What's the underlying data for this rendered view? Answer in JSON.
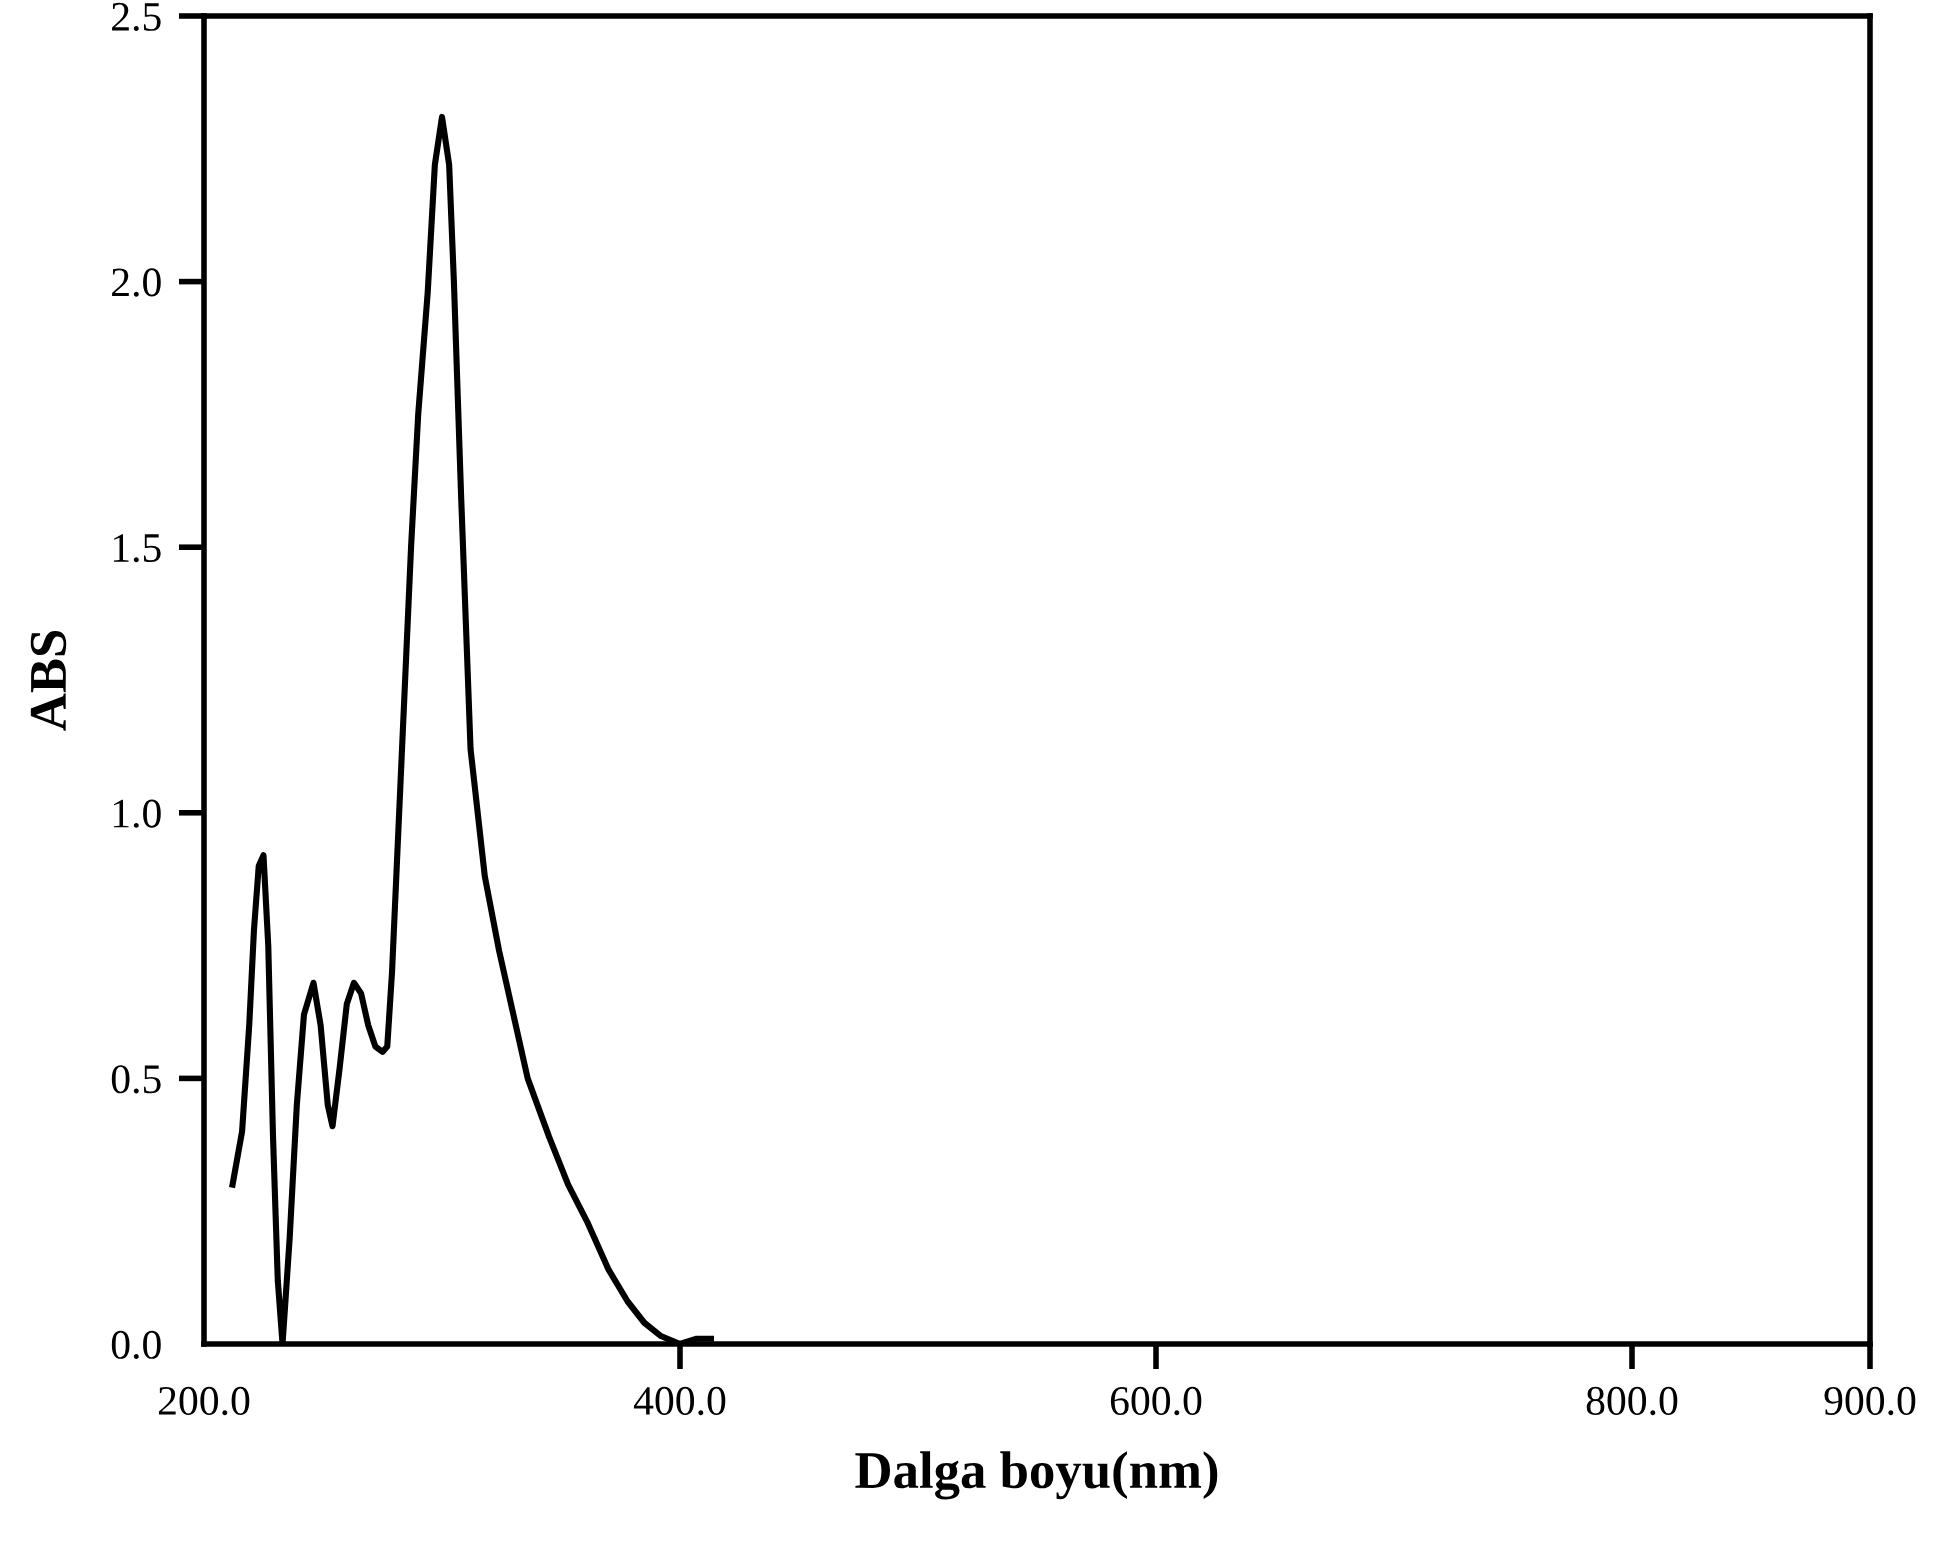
{
  "chart_data": {
    "type": "line",
    "xlabel": "Dalga boyu(nm)",
    "ylabel": "ABS",
    "x": [
      212,
      216,
      219,
      221,
      223,
      225,
      227,
      229,
      231,
      233,
      236,
      239,
      242,
      246,
      249,
      252,
      254,
      257,
      260,
      263,
      266,
      269,
      272,
      275,
      277,
      279,
      281,
      284,
      287,
      290,
      294,
      297,
      300,
      303,
      305,
      308,
      312,
      318,
      324,
      330,
      336,
      345,
      353,
      361,
      370,
      378,
      385,
      392,
      400,
      407,
      413
    ],
    "series": [
      {
        "color": "#000000",
        "values": [
          0.3,
          0.4,
          0.6,
          0.78,
          0.9,
          0.92,
          0.75,
          0.39,
          0.12,
          0.0,
          0.2,
          0.45,
          0.62,
          0.68,
          0.6,
          0.45,
          0.41,
          0.52,
          0.64,
          0.68,
          0.66,
          0.6,
          0.56,
          0.55,
          0.56,
          0.7,
          0.9,
          1.2,
          1.5,
          1.75,
          1.98,
          2.22,
          2.31,
          2.22,
          2.0,
          1.6,
          1.12,
          0.88,
          0.74,
          0.62,
          0.5,
          0.39,
          0.3,
          0.23,
          0.14,
          0.08,
          0.04,
          0.015,
          0.0,
          0.01,
          0.01
        ]
      }
    ],
    "xlim": [
      200,
      900
    ],
    "ylim": [
      0,
      2.5
    ],
    "xticks": [
      {
        "value": 200,
        "label": "200.0"
      },
      {
        "value": 400,
        "label": "400.0"
      },
      {
        "value": 600,
        "label": "600.0"
      },
      {
        "value": 800,
        "label": "800.0"
      },
      {
        "value": 900,
        "label": "900.0"
      }
    ],
    "yticks": [
      {
        "value": 0,
        "label": "0.0"
      },
      {
        "value": 0.5,
        "label": "0.5"
      },
      {
        "value": 1.0,
        "label": "1.0"
      },
      {
        "value": 1.5,
        "label": "1.5"
      },
      {
        "value": 2.0,
        "label": "2.0"
      },
      {
        "value": 2.5,
        "label": "2.5"
      }
    ],
    "grid": false,
    "marker": "none",
    "line_style": "solid"
  }
}
